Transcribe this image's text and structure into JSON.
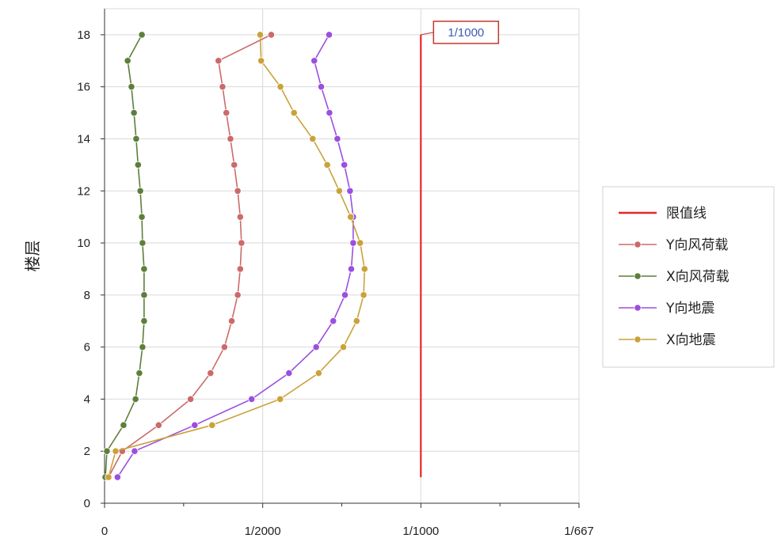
{
  "chart_data": {
    "type": "line",
    "title": "",
    "xlabel": "",
    "ylabel": "楼层",
    "x_unit": "drift ratio (1/N), expressed as reciprocal",
    "xlim": [
      0,
      0.0015
    ],
    "xticks": [
      {
        "value": 0,
        "label": "0"
      },
      {
        "value": 0.0005,
        "label": "1/2000"
      },
      {
        "value": 0.001,
        "label": "1/1000"
      },
      {
        "value": 0.0015,
        "label": "1/667"
      }
    ],
    "x_minor_ticks": [
      0.00025,
      0.00075,
      0.00125
    ],
    "ylim": [
      0,
      19
    ],
    "yticks": [
      0,
      2,
      4,
      6,
      8,
      10,
      12,
      14,
      16,
      18
    ],
    "grid": true,
    "legend_position": "right",
    "annotation": {
      "text": "1/1000",
      "x": 0.001,
      "y": 18
    },
    "series": [
      {
        "name": "限值线",
        "color": "#e8262a",
        "markers": false,
        "points": [
          [
            0.001,
            1
          ],
          [
            0.001,
            18
          ]
        ]
      },
      {
        "name": "Y向风荷载",
        "color": "#cc6a6a",
        "markers": true,
        "points": [
          [
            1.25e-05,
            1
          ],
          [
            5.6e-05,
            2
          ],
          [
            0.000171,
            3
          ],
          [
            0.000272,
            4
          ],
          [
            0.000335,
            5
          ],
          [
            0.000379,
            6
          ],
          [
            0.000402,
            7
          ],
          [
            0.000421,
            8
          ],
          [
            0.000429,
            9
          ],
          [
            0.000433,
            10
          ],
          [
            0.000429,
            11
          ],
          [
            0.000421,
            12
          ],
          [
            0.00041,
            13
          ],
          [
            0.000398,
            14
          ],
          [
            0.000385,
            15
          ],
          [
            0.000373,
            16
          ],
          [
            0.00036,
            17
          ],
          [
            0.000527,
            18
          ]
        ]
      },
      {
        "name": "X向风荷载",
        "color": "#5d7f3a",
        "markers": true,
        "points": [
          [
            2.5e-06,
            1
          ],
          [
            7.5e-06,
            2
          ],
          [
            6e-05,
            3
          ],
          [
            9.8e-05,
            4
          ],
          [
            0.00011,
            5
          ],
          [
            0.00012,
            6
          ],
          [
            0.000125,
            7
          ],
          [
            0.000125,
            8
          ],
          [
            0.000125,
            9
          ],
          [
            0.00012,
            10
          ],
          [
            0.000118,
            11
          ],
          [
            0.000113,
            12
          ],
          [
            0.000106,
            13
          ],
          [
            0.0001,
            14
          ],
          [
            9.3e-05,
            15
          ],
          [
            8.5e-05,
            16
          ],
          [
            7.3e-05,
            17
          ],
          [
            0.000118,
            18
          ]
        ]
      },
      {
        "name": "Y向地震",
        "color": "#9b4fe0",
        "markers": true,
        "points": [
          [
            4.1e-05,
            1
          ],
          [
            9.5e-05,
            2
          ],
          [
            0.000285,
            3
          ],
          [
            0.000465,
            4
          ],
          [
            0.000583,
            5
          ],
          [
            0.000669,
            6
          ],
          [
            0.000723,
            7
          ],
          [
            0.00076,
            8
          ],
          [
            0.00078,
            9
          ],
          [
            0.000786,
            10
          ],
          [
            0.000786,
            11
          ],
          [
            0.000776,
            12
          ],
          [
            0.000758,
            13
          ],
          [
            0.000736,
            14
          ],
          [
            0.000711,
            15
          ],
          [
            0.000685,
            16
          ],
          [
            0.000663,
            17
          ],
          [
            0.00071,
            18
          ]
        ]
      },
      {
        "name": "X向地震",
        "color": "#c9a23a",
        "markers": true,
        "points": [
          [
            1.25e-05,
            1
          ],
          [
            3.5e-05,
            2
          ],
          [
            0.00034,
            3
          ],
          [
            0.000555,
            4
          ],
          [
            0.000677,
            5
          ],
          [
            0.000755,
            6
          ],
          [
            0.000797,
            7
          ],
          [
            0.000819,
            8
          ],
          [
            0.000822,
            9
          ],
          [
            0.000808,
            10
          ],
          [
            0.000778,
            11
          ],
          [
            0.000742,
            12
          ],
          [
            0.000704,
            13
          ],
          [
            0.000658,
            14
          ],
          [
            0.000599,
            15
          ],
          [
            0.000556,
            16
          ],
          [
            0.000495,
            17
          ],
          [
            0.000492,
            18
          ]
        ]
      }
    ]
  }
}
